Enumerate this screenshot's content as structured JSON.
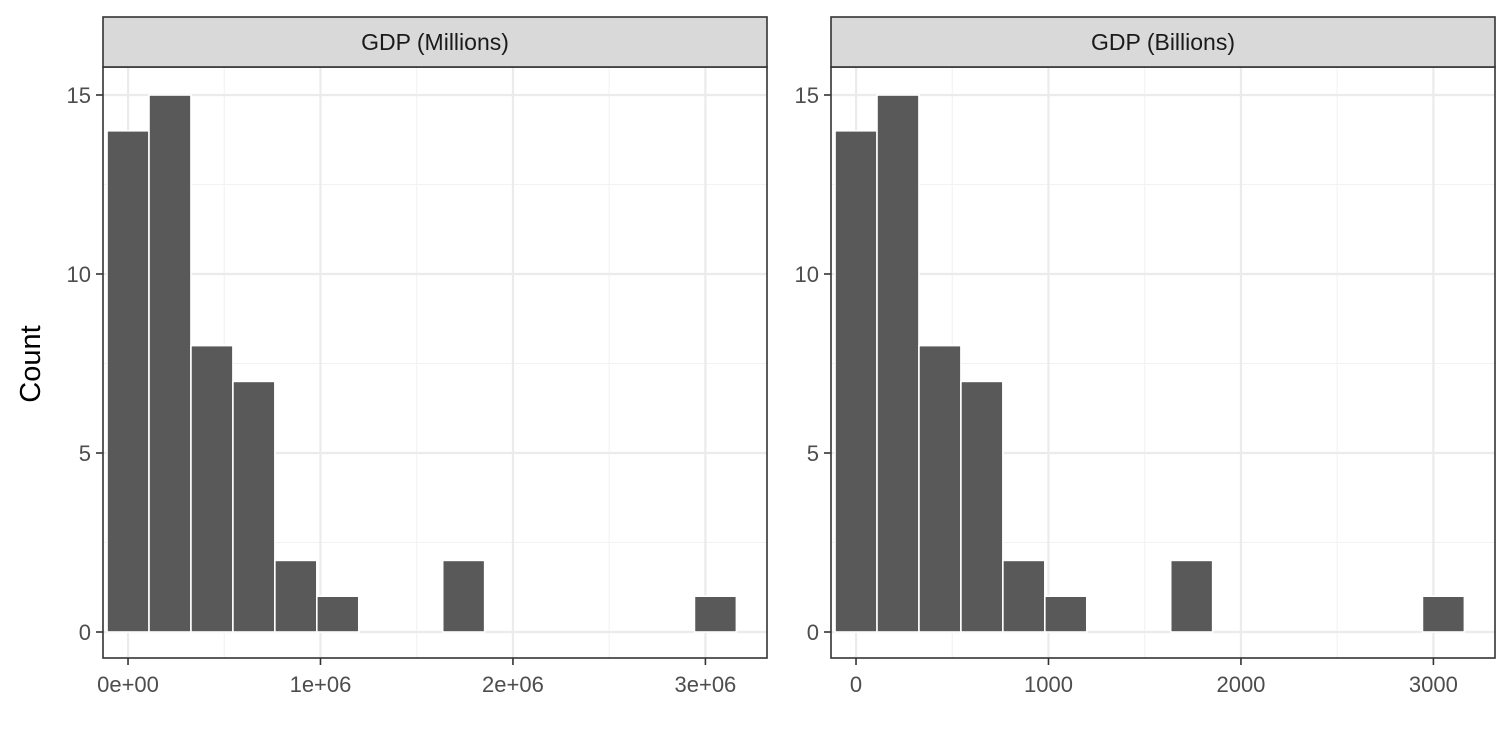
{
  "chart_data": {
    "type": "bar",
    "ylabel": "Count",
    "ylim": [
      0,
      15
    ],
    "yticks": [
      0,
      5,
      10,
      15
    ],
    "panels": [
      {
        "title": "GDP (Millions)",
        "xlim": [
          -130000,
          3320000
        ],
        "xticks": [
          0,
          1000000,
          2000000,
          3000000
        ],
        "xtick_labels": [
          "0e+00",
          "1e+06",
          "2e+06",
          "3e+06"
        ],
        "bin_width": 218000,
        "bins": [
          {
            "x": 0,
            "count": 14
          },
          {
            "x": 218000,
            "count": 15
          },
          {
            "x": 436000,
            "count": 8
          },
          {
            "x": 654000,
            "count": 7
          },
          {
            "x": 872000,
            "count": 2
          },
          {
            "x": 1090000,
            "count": 1
          },
          {
            "x": 1308000,
            "count": 0
          },
          {
            "x": 1526000,
            "count": 0
          },
          {
            "x": 1744000,
            "count": 2
          },
          {
            "x": 1962000,
            "count": 0
          },
          {
            "x": 2180000,
            "count": 0
          },
          {
            "x": 2398000,
            "count": 0
          },
          {
            "x": 2616000,
            "count": 0
          },
          {
            "x": 2834000,
            "count": 0
          },
          {
            "x": 3052000,
            "count": 1
          }
        ]
      },
      {
        "title": "GDP (Billions)",
        "xlim": [
          -130,
          3320
        ],
        "xticks": [
          0,
          1000,
          2000,
          3000
        ],
        "xtick_labels": [
          "0",
          "1000",
          "2000",
          "3000"
        ],
        "bin_width": 218,
        "bins": [
          {
            "x": 0,
            "count": 14
          },
          {
            "x": 218,
            "count": 15
          },
          {
            "x": 436,
            "count": 8
          },
          {
            "x": 654,
            "count": 7
          },
          {
            "x": 872,
            "count": 2
          },
          {
            "x": 1090,
            "count": 1
          },
          {
            "x": 1308,
            "count": 0
          },
          {
            "x": 1526,
            "count": 0
          },
          {
            "x": 1744,
            "count": 2
          },
          {
            "x": 1962,
            "count": 0
          },
          {
            "x": 2180,
            "count": 0
          },
          {
            "x": 2398,
            "count": 0
          },
          {
            "x": 2616,
            "count": 0
          },
          {
            "x": 2834,
            "count": 0
          },
          {
            "x": 3052,
            "count": 1
          }
        ]
      }
    ],
    "grid": true,
    "legend": "none",
    "colors": {
      "bar_fill": "#595959",
      "bar_outline": "#ffffff",
      "strip_fill": "#d9d9d9"
    }
  }
}
